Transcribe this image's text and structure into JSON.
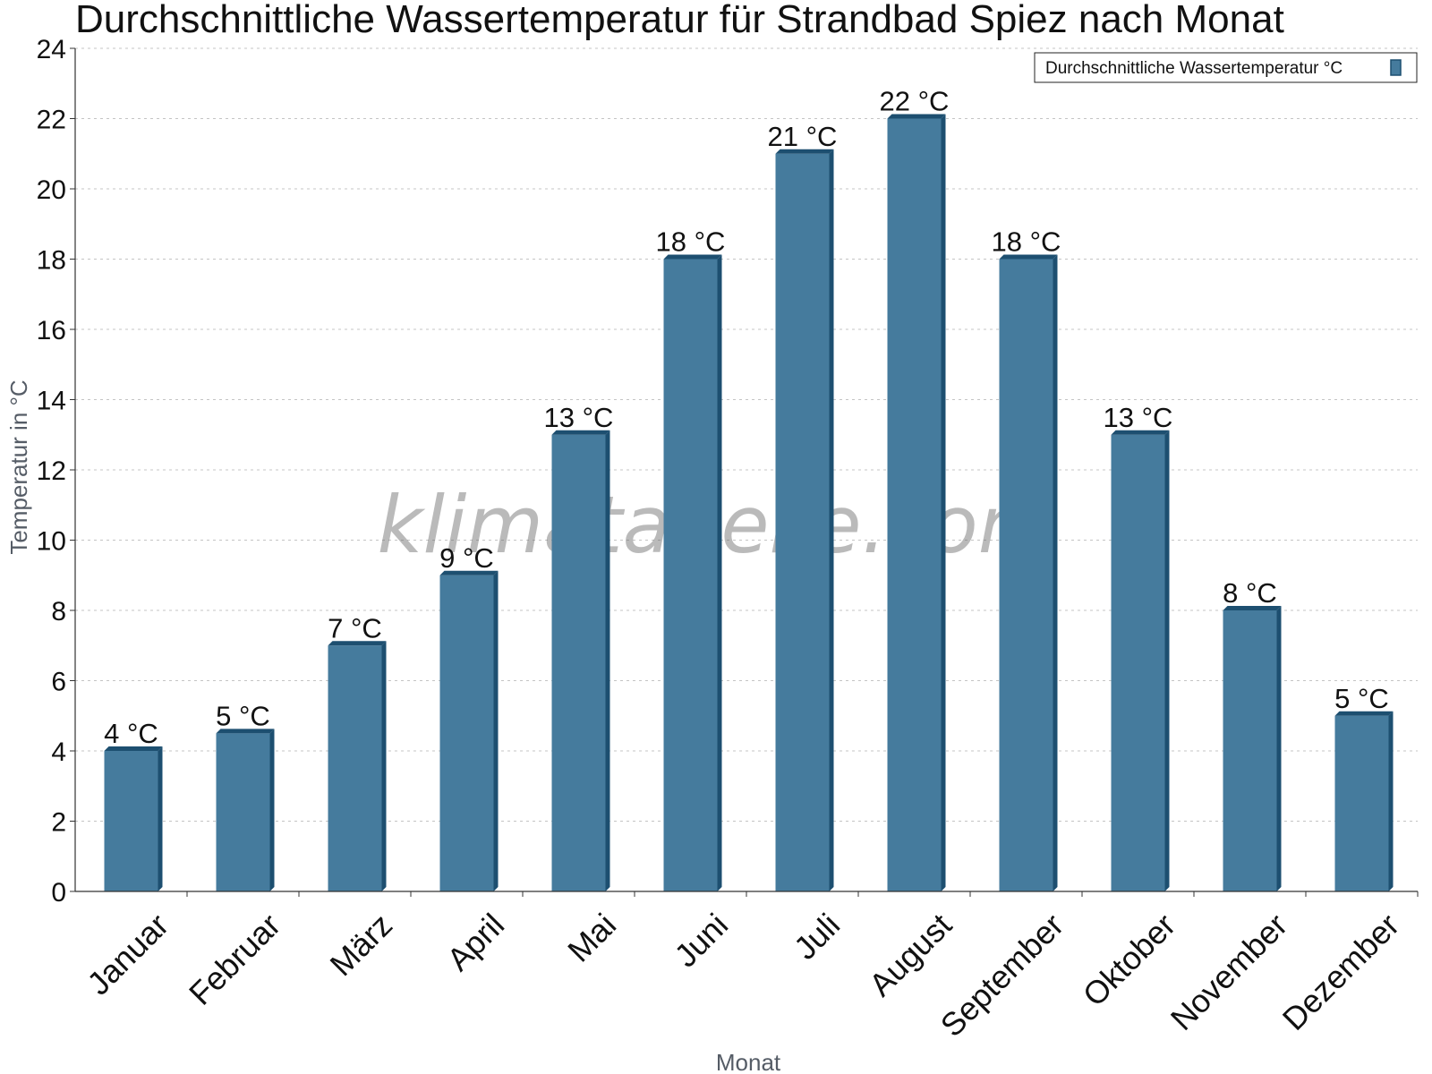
{
  "chart_data": {
    "type": "bar",
    "title": "Durchschnittliche Wassertemperatur für Strandbad Spiez nach Monat",
    "xlabel": "Monat",
    "ylabel": "Temperatur in °C",
    "categories": [
      "Januar",
      "Februar",
      "März",
      "April",
      "Mai",
      "Juni",
      "Juli",
      "August",
      "September",
      "Oktober",
      "November",
      "Dezember"
    ],
    "series": [
      {
        "name": "Durchschnittliche Wassertemperatur °C",
        "values": [
          4,
          4.5,
          7,
          9,
          13,
          18,
          21,
          22,
          18,
          13,
          8,
          5
        ],
        "data_labels": [
          "4 °C",
          "5 °C",
          "7 °C",
          "9 °C",
          "13 °C",
          "18 °C",
          "21 °C",
          "22 °C",
          "18 °C",
          "13 °C",
          "8 °C",
          "5 °C"
        ],
        "color": "#457b9d",
        "edge_color": "#1d4f70"
      }
    ],
    "ylim": [
      0,
      24
    ],
    "yticks": [
      0,
      2,
      4,
      6,
      8,
      10,
      12,
      14,
      16,
      18,
      20,
      22,
      24
    ],
    "grid": true,
    "legend": "top-right",
    "watermark": "klimatabelle.com"
  }
}
